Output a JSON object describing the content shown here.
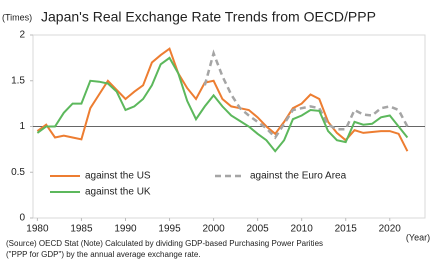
{
  "chart_data": {
    "type": "line",
    "title": "Japan's Real Exchange Rate Trends from OECD/PPP",
    "y_label": "(Times)",
    "x_label": "(Year)",
    "x": [
      1980,
      1981,
      1982,
      1983,
      1984,
      1985,
      1986,
      1987,
      1988,
      1989,
      1990,
      1991,
      1992,
      1993,
      1994,
      1995,
      1996,
      1997,
      1998,
      1999,
      2000,
      2001,
      2002,
      2003,
      2004,
      2005,
      2006,
      2007,
      2008,
      2009,
      2010,
      2011,
      2012,
      2013,
      2014,
      2015,
      2016,
      2017,
      2018,
      2019,
      2020,
      2021,
      2022
    ],
    "series": [
      {
        "name": "against the US",
        "color": "#ed7d31",
        "dash": false,
        "values": [
          0.95,
          1.02,
          0.88,
          0.9,
          0.88,
          0.86,
          1.2,
          1.35,
          1.5,
          1.4,
          1.3,
          1.38,
          1.45,
          1.7,
          1.78,
          1.85,
          1.58,
          1.42,
          1.3,
          1.48,
          1.5,
          1.3,
          1.22,
          1.2,
          1.18,
          1.1,
          1.0,
          0.92,
          1.05,
          1.2,
          1.25,
          1.35,
          1.3,
          1.05,
          0.93,
          0.85,
          0.96,
          0.93,
          0.94,
          0.95,
          0.95,
          0.92,
          0.73
        ]
      },
      {
        "name": "against the Euro Area",
        "color": "#a5a5a5",
        "dash": true,
        "values": [
          null,
          null,
          null,
          null,
          null,
          null,
          null,
          null,
          null,
          null,
          null,
          null,
          null,
          null,
          null,
          null,
          null,
          null,
          null,
          1.45,
          1.8,
          1.55,
          1.35,
          1.2,
          1.12,
          1.05,
          0.98,
          0.88,
          1.03,
          1.18,
          1.2,
          1.22,
          1.2,
          1.02,
          0.97,
          0.97,
          1.18,
          1.13,
          1.12,
          1.2,
          1.22,
          1.18,
          1.0
        ]
      },
      {
        "name": "against the UK",
        "color": "#5cb85c",
        "dash": false,
        "values": [
          0.93,
          1.0,
          1.0,
          1.15,
          1.25,
          1.25,
          1.5,
          1.49,
          1.47,
          1.38,
          1.18,
          1.22,
          1.3,
          1.45,
          1.68,
          1.75,
          1.58,
          1.28,
          1.08,
          1.22,
          1.34,
          1.22,
          1.12,
          1.06,
          1.0,
          0.92,
          0.85,
          0.73,
          0.85,
          1.08,
          1.12,
          1.18,
          1.17,
          0.95,
          0.85,
          0.83,
          1.05,
          1.02,
          1.03,
          1.1,
          1.12,
          1.0,
          0.88
        ]
      }
    ],
    "xlim": [
      1979.5,
      2024
    ],
    "xticks": [
      1980,
      1985,
      1990,
      1995,
      2000,
      2005,
      2010,
      2015,
      2020
    ],
    "ylim": [
      0,
      2
    ],
    "yticks": [
      0,
      0.5,
      1,
      1.5,
      2
    ],
    "reference_line": 1,
    "notes": [
      "(Source) OECD Stat (Note) Calculated by dividing GDP-based Purchasing Power Parities",
      "(\"PPP for GDP\") by the annual average exchange rate."
    ]
  }
}
